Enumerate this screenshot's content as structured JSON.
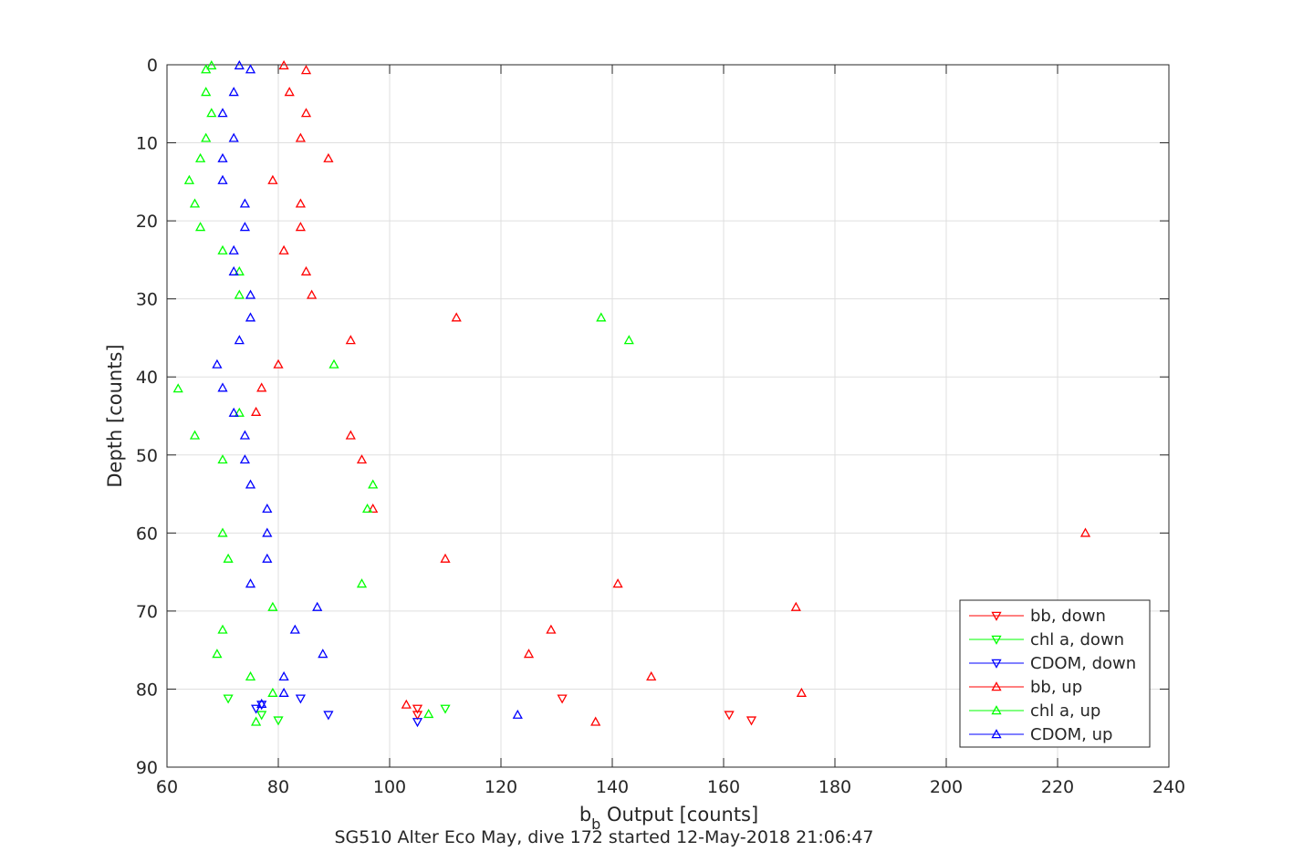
{
  "caption": "SG510 Alter Eco May, dive 172 started 12-May-2018 21:06:47",
  "chart_data": {
    "type": "scatter",
    "xlabel_main": "b",
    "xlabel_sub": "b",
    "xlabel_rest": " Output [counts]",
    "ylabel": "Depth [counts]",
    "xlim": [
      60,
      240
    ],
    "ylim": [
      0,
      90
    ],
    "y_reversed": true,
    "xticks": [
      "60",
      "80",
      "100",
      "120",
      "140",
      "160",
      "180",
      "200",
      "220",
      "240"
    ],
    "yticks": [
      "0",
      "10",
      "20",
      "30",
      "40",
      "50",
      "60",
      "70",
      "80",
      "90"
    ],
    "grid": true,
    "legend_position": "bottom-right",
    "series": [
      {
        "name": "bb, down",
        "color": "#ff0000",
        "marker": "triangle-down",
        "x": [
          105,
          105,
          131,
          161,
          165
        ],
        "y": [
          82.5,
          83.3,
          81.2,
          83.3,
          84.0
        ]
      },
      {
        "name": "chl a, down",
        "color": "#00ff00",
        "marker": "triangle-down",
        "x": [
          71,
          77,
          80,
          110
        ],
        "y": [
          81.2,
          83.3,
          84.0,
          82.5
        ]
      },
      {
        "name": "CDOM, down",
        "color": "#0000ff",
        "marker": "triangle-down",
        "x": [
          76,
          77,
          84,
          89,
          105
        ],
        "y": [
          82.5,
          82.0,
          81.2,
          83.3,
          84.2
        ]
      },
      {
        "name": "bb, up",
        "color": "#ff0000",
        "marker": "triangle-up",
        "x": [
          81,
          85,
          82,
          85,
          84,
          89,
          79,
          84,
          84,
          81,
          85,
          86,
          112,
          93,
          80,
          77,
          76,
          93,
          95,
          97,
          225,
          110,
          141,
          173,
          129,
          125,
          147,
          174,
          103,
          137
        ],
        "y": [
          0.1,
          0.7,
          3.5,
          6.2,
          9.4,
          12.0,
          14.8,
          17.8,
          20.8,
          23.8,
          26.5,
          29.5,
          32.4,
          35.3,
          38.4,
          41.4,
          44.5,
          47.5,
          50.6,
          56.9,
          60.0,
          63.3,
          66.5,
          69.5,
          72.4,
          75.5,
          78.4,
          80.5,
          82.0,
          84.2
        ]
      },
      {
        "name": "chl a, up",
        "color": "#00ff00",
        "marker": "triangle-up",
        "x": [
          68,
          67,
          67,
          68,
          67,
          66,
          64,
          65,
          66,
          70,
          73,
          73,
          138,
          143,
          90,
          62,
          73,
          65,
          70,
          97,
          96,
          70,
          71,
          95,
          79,
          70,
          69,
          75,
          79,
          107,
          76
        ],
        "y": [
          0.1,
          0.6,
          3.5,
          6.2,
          9.4,
          12.0,
          14.8,
          17.8,
          20.8,
          23.8,
          26.5,
          29.5,
          32.4,
          35.3,
          38.4,
          41.5,
          44.6,
          47.5,
          50.6,
          53.8,
          56.9,
          60.0,
          63.3,
          66.5,
          69.5,
          72.4,
          75.5,
          78.4,
          80.5,
          83.2,
          84.2
        ]
      },
      {
        "name": "CDOM, up",
        "color": "#0000ff",
        "marker": "triangle-up",
        "x": [
          73,
          75,
          72,
          70,
          72,
          70,
          70,
          74,
          74,
          72,
          72,
          75,
          75,
          73,
          69,
          70,
          72,
          74,
          74,
          75,
          78,
          78,
          78,
          75,
          87,
          83,
          88,
          81,
          81,
          77,
          123
        ],
        "y": [
          0.1,
          0.6,
          3.5,
          6.2,
          9.4,
          12.0,
          14.8,
          17.8,
          20.8,
          23.8,
          26.5,
          29.5,
          32.4,
          35.3,
          38.4,
          41.4,
          44.6,
          47.5,
          50.6,
          53.8,
          56.9,
          60.0,
          63.3,
          66.5,
          69.5,
          72.4,
          75.5,
          78.4,
          80.5,
          81.9,
          83.3
        ]
      }
    ]
  }
}
